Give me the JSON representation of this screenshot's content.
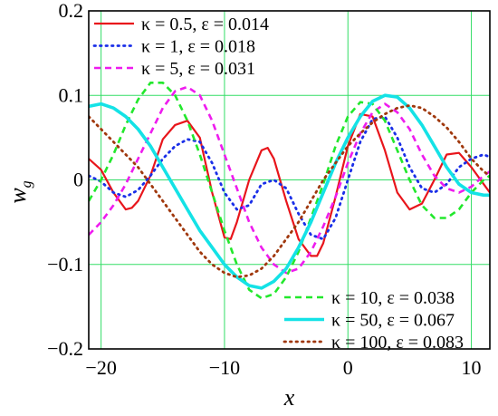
{
  "chart_data": {
    "type": "line",
    "title": "",
    "xlabel": "x",
    "ylabel": "w",
    "ylabel_subscript": "g",
    "xlim": [
      -21,
      11.5
    ],
    "ylim": [
      -0.2,
      0.2
    ],
    "xticks": [
      -20,
      -10,
      0,
      10
    ],
    "xtick_labels": [
      "−20",
      "−10",
      "0",
      "10"
    ],
    "yticks": [
      -0.2,
      -0.1,
      0,
      0.1,
      0.2
    ],
    "ytick_labels": [
      "−0.2",
      "−0.1",
      "0",
      "0.1",
      "0.2"
    ],
    "grid": true,
    "grid_color": "#33dd66",
    "legend_placement": [
      "top-left",
      "bottom-right"
    ],
    "series": [
      {
        "name": "κ = 0.5, ε = 0.014",
        "color": "#e8151b",
        "style": "solid",
        "legend_group": 0,
        "x": [
          -21,
          -20,
          -19,
          -18,
          -17.5,
          -17,
          -16,
          -15,
          -14,
          -13,
          -12,
          -11,
          -10,
          -9.5,
          -9,
          -8,
          -7,
          -6.5,
          -6,
          -5,
          -4,
          -3,
          -2.5,
          -2,
          -1,
          0,
          1,
          2,
          3,
          4,
          5,
          6,
          7,
          8,
          9,
          10,
          11,
          11.5
        ],
        "y": [
          0.025,
          0.012,
          -0.015,
          -0.035,
          -0.033,
          -0.025,
          0.005,
          0.048,
          0.065,
          0.07,
          0.05,
          -0.015,
          -0.068,
          -0.07,
          -0.05,
          0.0,
          0.035,
          0.038,
          0.025,
          -0.025,
          -0.07,
          -0.09,
          -0.09,
          -0.075,
          -0.02,
          0.04,
          0.078,
          0.075,
          0.035,
          -0.015,
          -0.035,
          -0.028,
          0.0,
          0.03,
          0.032,
          0.015,
          -0.005,
          -0.015
        ]
      },
      {
        "name": "κ = 1, ε = 0.018",
        "color": "#1a2fe8",
        "style": "dotted",
        "legend_group": 0,
        "x": [
          -21,
          -20,
          -19,
          -18,
          -17,
          -16,
          -15,
          -14,
          -13,
          -12,
          -11,
          -10,
          -9,
          -8,
          -7,
          -6,
          -5,
          -4,
          -3,
          -2,
          -1,
          0,
          1,
          2,
          3,
          4,
          5,
          6,
          7,
          8,
          9,
          10,
          11,
          11.5
        ],
        "y": [
          0.005,
          -0.002,
          -0.015,
          -0.02,
          -0.012,
          0.005,
          0.025,
          0.04,
          0.048,
          0.045,
          0.02,
          -0.015,
          -0.035,
          -0.03,
          -0.005,
          0.0,
          -0.01,
          -0.04,
          -0.065,
          -0.07,
          -0.045,
          0.0,
          0.045,
          0.072,
          0.075,
          0.05,
          0.015,
          -0.01,
          -0.015,
          -0.005,
          0.015,
          0.025,
          0.03,
          0.027
        ]
      },
      {
        "name": "κ = 5, ε = 0.031",
        "color": "#ee1cee",
        "style": "dashed",
        "legend_group": 0,
        "x": [
          -21,
          -20,
          -19,
          -18,
          -17,
          -16,
          -15,
          -14,
          -13,
          -12,
          -11,
          -10,
          -9,
          -8,
          -7,
          -6,
          -5,
          -4,
          -3,
          -2,
          -1,
          0,
          1,
          2,
          3,
          4,
          5,
          6,
          7,
          8,
          9,
          10,
          11,
          11.5
        ],
        "y": [
          -0.065,
          -0.05,
          -0.03,
          -0.005,
          0.025,
          0.055,
          0.085,
          0.105,
          0.11,
          0.1,
          0.07,
          0.03,
          -0.01,
          -0.05,
          -0.08,
          -0.1,
          -0.11,
          -0.105,
          -0.085,
          -0.055,
          -0.02,
          0.02,
          0.055,
          0.08,
          0.09,
          0.08,
          0.06,
          0.03,
          0.005,
          -0.01,
          -0.015,
          -0.008,
          0.005,
          0.01
        ]
      },
      {
        "name": "κ = 10, ε = 0.038",
        "color": "#22e82c",
        "style": "dashed",
        "legend_group": 1,
        "x": [
          -21,
          -20,
          -19,
          -18,
          -17,
          -16,
          -15,
          -14,
          -13,
          -12,
          -11,
          -10,
          -9,
          -8,
          -7,
          -6,
          -5,
          -4,
          -3,
          -2,
          -1,
          0,
          1,
          2,
          3,
          4,
          5,
          6,
          7,
          8,
          9,
          10,
          11,
          11.5
        ],
        "y": [
          -0.025,
          0.0,
          0.03,
          0.065,
          0.095,
          0.115,
          0.115,
          0.1,
          0.07,
          0.03,
          -0.015,
          -0.06,
          -0.1,
          -0.13,
          -0.14,
          -0.135,
          -0.115,
          -0.085,
          -0.045,
          -0.005,
          0.04,
          0.075,
          0.092,
          0.09,
          0.07,
          0.035,
          0.0,
          -0.03,
          -0.045,
          -0.045,
          -0.035,
          -0.015,
          0.0,
          0.005
        ]
      },
      {
        "name": "κ = 50, ε = 0.067",
        "color": "#14e2e6",
        "style": "solid-thick",
        "legend_group": 1,
        "x": [
          -21,
          -20,
          -19,
          -18,
          -17,
          -16,
          -15,
          -14,
          -13,
          -12,
          -11,
          -10,
          -9,
          -8,
          -7,
          -6,
          -5,
          -4,
          -3,
          -2,
          -1,
          0,
          1,
          2,
          3,
          4,
          5,
          6,
          7,
          8,
          9,
          10,
          11,
          11.5
        ],
        "y": [
          0.087,
          0.09,
          0.085,
          0.075,
          0.06,
          0.04,
          0.015,
          -0.01,
          -0.035,
          -0.06,
          -0.08,
          -0.1,
          -0.115,
          -0.125,
          -0.128,
          -0.12,
          -0.105,
          -0.08,
          -0.05,
          -0.015,
          0.02,
          0.05,
          0.075,
          0.093,
          0.1,
          0.098,
          0.085,
          0.065,
          0.04,
          0.015,
          -0.005,
          -0.015,
          -0.018,
          -0.018
        ]
      },
      {
        "name": "κ = 100, ε = 0.083",
        "color": "#a0380d",
        "style": "dotted",
        "legend_group": 1,
        "x": [
          -21,
          -20,
          -19,
          -18,
          -17,
          -16,
          -15,
          -14,
          -13,
          -12,
          -11,
          -10,
          -9,
          -8,
          -7,
          -6,
          -5,
          -4,
          -3,
          -2,
          -1,
          0,
          1,
          2,
          3,
          4,
          5,
          6,
          7,
          8,
          9,
          10,
          11,
          11.5
        ],
        "y": [
          0.075,
          0.06,
          0.045,
          0.03,
          0.015,
          -0.005,
          -0.025,
          -0.045,
          -0.065,
          -0.085,
          -0.1,
          -0.11,
          -0.115,
          -0.113,
          -0.105,
          -0.09,
          -0.07,
          -0.05,
          -0.025,
          0.0,
          0.02,
          0.04,
          0.055,
          0.068,
          0.078,
          0.085,
          0.088,
          0.085,
          0.075,
          0.062,
          0.045,
          0.025,
          0.01,
          0.005
        ]
      }
    ]
  }
}
